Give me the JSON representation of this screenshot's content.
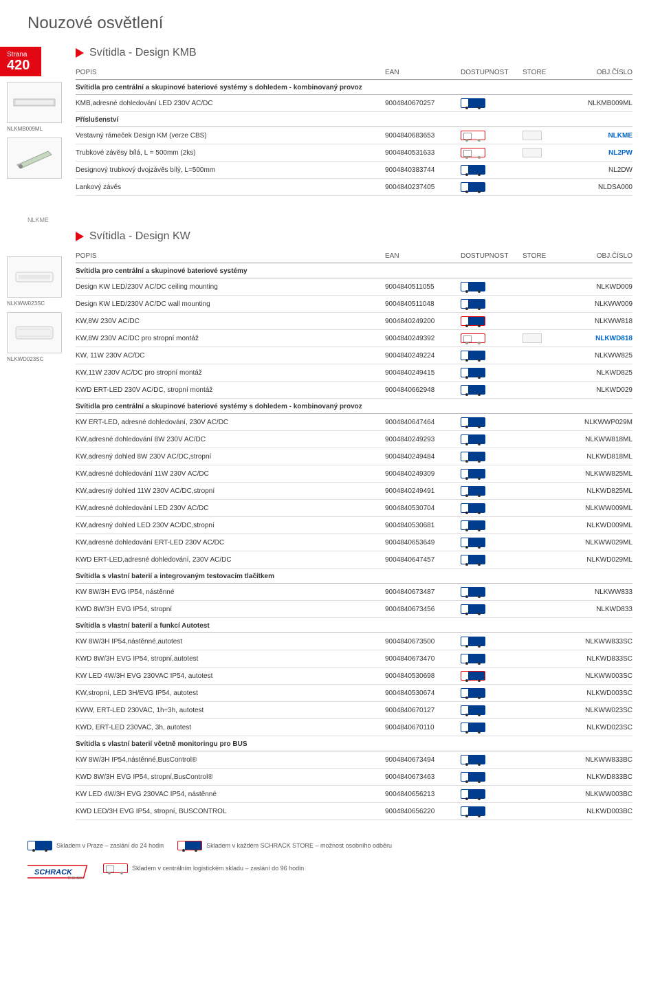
{
  "page_title": "Nouzové osvětlení",
  "page_tab": {
    "strana": "Strana",
    "num": "420"
  },
  "headers": {
    "popis": "POPIS",
    "ean": "EAN",
    "dost": "DOSTUPNOST",
    "store": "STORE",
    "obj": "OBJ.ČÍSLO"
  },
  "section_kmb": {
    "title": "Svítidla - Design KMB",
    "thumb_label": "NLKMB009ML",
    "groups": [
      {
        "subheader": "Svítidla pro centrální a skupinové bateriové systémy s dohledem - kombinovaný provoz",
        "rows": [
          {
            "popis": "KMB,adresné dohledování LED 230V AC/DC",
            "ean": "9004840670257",
            "dost": "blue",
            "store": "",
            "obj": "NLKMB009ML",
            "blue": false
          }
        ]
      },
      {
        "subheader": "Příslušenství",
        "rows": [
          {
            "popis": "Vestavný rámeček Design KM (verze CBS)",
            "ean": "9004840683653",
            "dost": "outline",
            "store": "y",
            "obj": "NLKME",
            "blue": true
          },
          {
            "popis": "Trubkové závěsy bílá, L = 500mm (2ks)",
            "ean": "9004840531633",
            "dost": "outline",
            "store": "y",
            "obj": "NL2PW",
            "blue": true
          },
          {
            "popis": "Designový trubkový dvojzávěs bílý, L=500mm",
            "ean": "9004840383744",
            "dost": "blue",
            "store": "",
            "obj": "NL2DW",
            "blue": false
          },
          {
            "popis": "Lankový závěs",
            "ean": "9004840237405",
            "dost": "blue",
            "store": "",
            "obj": "NLDSA000",
            "blue": false
          }
        ]
      }
    ]
  },
  "nlkme_tag": "NLKME",
  "section_kw": {
    "title": "Svítidla - Design KW",
    "thumb1_label": "NLKWW023SC",
    "thumb2_label": "NLKWD023SC",
    "groups": [
      {
        "subheader": "Svítidla pro centrální a skupinové bateriové systémy",
        "rows": [
          {
            "popis": "Design KW LED/230V AC/DC ceiling mounting",
            "ean": "9004840511055",
            "dost": "blue",
            "store": "",
            "obj": "NLKWD009",
            "blue": false
          },
          {
            "popis": "Design KW LED/230V AC/DC wall mounting",
            "ean": "9004840511048",
            "dost": "blue",
            "store": "",
            "obj": "NLKWW009",
            "blue": false
          },
          {
            "popis": "KW,8W 230V AC/DC",
            "ean": "9004840249200",
            "dost": "red",
            "store": "",
            "obj": "NLKWW818",
            "blue": false
          },
          {
            "popis": "KW,8W 230V AC/DC pro stropní montáž",
            "ean": "9004840249392",
            "dost": "outline",
            "store": "y",
            "obj": "NLKWD818",
            "blue": true
          },
          {
            "popis": "KW, 11W 230V AC/DC",
            "ean": "9004840249224",
            "dost": "blue",
            "store": "",
            "obj": "NLKWW825",
            "blue": false
          },
          {
            "popis": "KW,11W 230V AC/DC pro stropní montáž",
            "ean": "9004840249415",
            "dost": "blue",
            "store": "",
            "obj": "NLKWD825",
            "blue": false
          },
          {
            "popis": "KWD ERT-LED 230V AC/DC, stropní montáž",
            "ean": "9004840662948",
            "dost": "blue",
            "store": "",
            "obj": "NLKWD029",
            "blue": false
          }
        ]
      },
      {
        "subheader": "Svítidla pro centrální a skupinové bateriové systémy s dohledem - kombinovaný provoz",
        "rows": [
          {
            "popis": "KW ERT-LED, adresné dohledování, 230V AC/DC",
            "ean": "9004840647464",
            "dost": "blue",
            "store": "",
            "obj": "NLKWWP029M",
            "blue": false
          },
          {
            "popis": "KW,adresné dohledování 8W 230V AC/DC",
            "ean": "9004840249293",
            "dost": "blue",
            "store": "",
            "obj": "NLKWW818ML",
            "blue": false
          },
          {
            "popis": "KW,adresný dohled 8W 230V AC/DC,stropní",
            "ean": "9004840249484",
            "dost": "blue",
            "store": "",
            "obj": "NLKWD818ML",
            "blue": false
          },
          {
            "popis": "KW,adresné dohledování 11W 230V AC/DC",
            "ean": "9004840249309",
            "dost": "blue",
            "store": "",
            "obj": "NLKWW825ML",
            "blue": false
          },
          {
            "popis": "KW,adresný dohled 11W 230V AC/DC,stropní",
            "ean": "9004840249491",
            "dost": "blue",
            "store": "",
            "obj": "NLKWD825ML",
            "blue": false
          },
          {
            "popis": "KW,adresné dohledování LED 230V AC/DC",
            "ean": "9004840530704",
            "dost": "blue",
            "store": "",
            "obj": "NLKWW009ML",
            "blue": false
          },
          {
            "popis": "KW,adresný dohled LED 230V AC/DC,stropní",
            "ean": "9004840530681",
            "dost": "blue",
            "store": "",
            "obj": "NLKWD009ML",
            "blue": false
          },
          {
            "popis": "KW,adresné dohledování ERT-LED 230V AC/DC",
            "ean": "9004840653649",
            "dost": "blue",
            "store": "",
            "obj": "NLKWW029ML",
            "blue": false
          },
          {
            "popis": "KWD ERT-LED,adresné dohledování, 230V AC/DC",
            "ean": "9004840647457",
            "dost": "blue",
            "store": "",
            "obj": "NLKWD029ML",
            "blue": false
          }
        ]
      },
      {
        "subheader": "Svítidla s vlastní baterií a integrovaným testovacím tlačítkem",
        "rows": [
          {
            "popis": "KW 8W/3H EVG IP54, nástěnné",
            "ean": "9004840673487",
            "dost": "blue",
            "store": "",
            "obj": "NLKWW833",
            "blue": false
          },
          {
            "popis": "KWD 8W/3H EVG IP54, stropní",
            "ean": "9004840673456",
            "dost": "blue",
            "store": "",
            "obj": "NLKWD833",
            "blue": false
          }
        ]
      },
      {
        "subheader": "Svítidla s vlastní baterií a funkcí Autotest",
        "rows": [
          {
            "popis": "KW 8W/3H IP54,nástěnné,autotest",
            "ean": "9004840673500",
            "dost": "blue",
            "store": "",
            "obj": "NLKWW833SC",
            "blue": false
          },
          {
            "popis": "KWD 8W/3H EVG IP54, stropní,autotest",
            "ean": "9004840673470",
            "dost": "blue",
            "store": "",
            "obj": "NLKWD833SC",
            "blue": false
          },
          {
            "popis": "KW LED 4W/3H EVG 230VAC IP54, autotest",
            "ean": "9004840530698",
            "dost": "red",
            "store": "",
            "obj": "NLKWW003SC",
            "blue": false
          },
          {
            "popis": "KW,stropní, LED 3H/EVG IP54, autotest",
            "ean": "9004840530674",
            "dost": "blue",
            "store": "",
            "obj": "NLKWD003SC",
            "blue": false
          },
          {
            "popis": "KWW, ERT-LED 230VAC, 1h÷3h, autotest",
            "ean": "9004840670127",
            "dost": "blue",
            "store": "",
            "obj": "NLKWW023SC",
            "blue": false
          },
          {
            "popis": "KWD, ERT-LED 230VAC, 3h, autotest",
            "ean": "9004840670110",
            "dost": "blue",
            "store": "",
            "obj": "NLKWD023SC",
            "blue": false
          }
        ]
      },
      {
        "subheader": "Svítidla s vlastní baterií včetně monitoringu pro BUS",
        "rows": [
          {
            "popis": "KW 8W/3H IP54,nástěnné,BusControl®",
            "ean": "9004840673494",
            "dost": "blue",
            "store": "",
            "obj": "NLKWW833BC",
            "blue": false
          },
          {
            "popis": "KWD 8W/3H EVG IP54, stropní,BusControl®",
            "ean": "9004840673463",
            "dost": "blue",
            "store": "",
            "obj": "NLKWD833BC",
            "blue": false
          },
          {
            "popis": "KW LED 4W/3H EVG 230VAC IP54, nástěnné",
            "ean": "9004840656213",
            "dost": "blue",
            "store": "",
            "obj": "NLKWW003BC",
            "blue": false
          },
          {
            "popis": "KWD LED/3H EVG IP54, stropní, BUSCONTROL",
            "ean": "9004840656220",
            "dost": "blue",
            "store": "",
            "obj": "NLKWD003BC",
            "blue": false
          }
        ]
      }
    ]
  },
  "footer": {
    "line1a": "Skladem v Praze – zaslání do 24 hodin",
    "line1b": "Skladem v každém SCHRACK STORE – možnost osobního odběru",
    "line2": "Skladem v centrálním logistickém skladu – zaslání do 96 hodin"
  }
}
